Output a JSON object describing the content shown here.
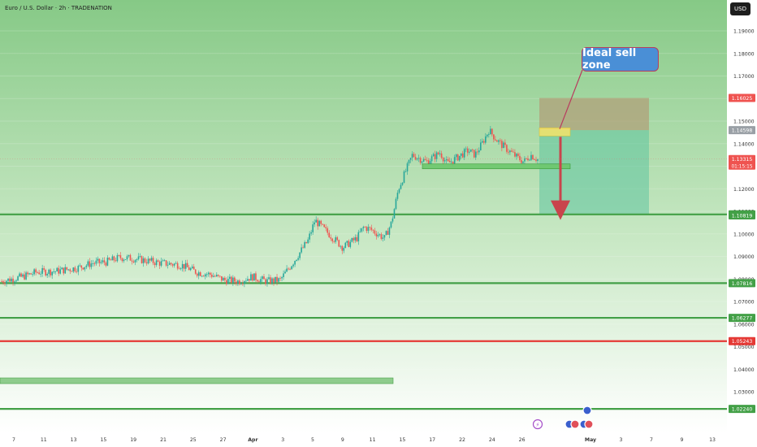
{
  "header": {
    "symbol_title": "Euro / U.S. Dollar · 2h · TRADENATION",
    "currency_button": "USD"
  },
  "annotation": {
    "callout_text": "Ideal sell zone"
  },
  "colors": {
    "background_top": "#7cc37c",
    "background_bottom": "#ffffff",
    "up_candle": "#26a69a",
    "down_candle": "#ef5350",
    "support_line": "#43a047",
    "resistance_line": "#e53935",
    "callout": "#4a8fd6",
    "stop_zone": "#b0a07a",
    "target_zone": "#5fc5a0"
  },
  "chart_data": {
    "type": "candlestick",
    "y_axis_ticks": [
      "1.19000",
      "1.18000",
      "1.17000",
      "1.16000",
      "1.15000",
      "1.14000",
      "1.13000",
      "1.12000",
      "1.11000",
      "1.10000",
      "1.09000",
      "1.08000",
      "1.07000",
      "1.06000",
      "1.05000",
      "1.04000",
      "1.03000"
    ],
    "x_axis_ticks": [
      "7",
      "11",
      "13",
      "15",
      "19",
      "21",
      "25",
      "27",
      "Apr",
      "3",
      "5",
      "9",
      "11",
      "15",
      "17",
      "22",
      "24",
      "26",
      "May",
      "3",
      "7",
      "9",
      "13"
    ],
    "horizontal_levels": [
      {
        "price": 1.10863,
        "color": "green",
        "label": "1.10863"
      },
      {
        "price": 1.07816,
        "color": "green",
        "label": "1.07816"
      },
      {
        "price": 1.06277,
        "color": "green",
        "label": "1.06277"
      },
      {
        "price": 1.05243,
        "color": "red",
        "label": "1.05243"
      },
      {
        "price": 1.0224,
        "color": "green",
        "label": "1.02240"
      }
    ],
    "price_labels": [
      {
        "price": 1.16025,
        "label": "1.16025",
        "color": "#ef5350"
      },
      {
        "price": 1.14598,
        "label": "1.14598",
        "color": "#9aa0a6"
      },
      {
        "price": 1.13315,
        "label": "1.13315",
        "sublabel": "01:15:15",
        "color": "#ef5350"
      },
      {
        "price": 1.10819,
        "label": "1.10819",
        "color": "#43a047"
      }
    ],
    "trade_setup": {
      "entry": 1.14598,
      "stop": 1.16025,
      "target": 1.10863
    },
    "path_close": [
      [
        0,
        1.079
      ],
      [
        3,
        1.081
      ],
      [
        5,
        1.083
      ],
      [
        8,
        1.0835
      ],
      [
        11,
        1.085
      ],
      [
        13,
        1.087
      ],
      [
        15,
        1.0875
      ],
      [
        17,
        1.0895
      ],
      [
        19,
        1.089
      ],
      [
        21,
        1.088
      ],
      [
        23,
        1.087
      ],
      [
        25,
        1.0865
      ],
      [
        26,
        1.086
      ],
      [
        28,
        1.083
      ],
      [
        30,
        1.082
      ],
      [
        32,
        1.0795
      ],
      [
        34,
        1.079
      ],
      [
        36,
        1.081
      ],
      [
        38,
        1.079
      ],
      [
        40,
        1.0795
      ],
      [
        42,
        1.088
      ],
      [
        44,
        1.097
      ],
      [
        45,
        1.106
      ],
      [
        47,
        1.1
      ],
      [
        49,
        1.094
      ],
      [
        51,
        1.098
      ],
      [
        52,
        1.103
      ],
      [
        53,
        1.102
      ],
      [
        55,
        1.098
      ],
      [
        56,
        1.105
      ],
      [
        57,
        1.12
      ],
      [
        59,
        1.135
      ],
      [
        61,
        1.132
      ],
      [
        63,
        1.136
      ],
      [
        64,
        1.131
      ],
      [
        65,
        1.133
      ],
      [
        67,
        1.137
      ],
      [
        68,
        1.135
      ],
      [
        69,
        1.14
      ],
      [
        70,
        1.146
      ],
      [
        71,
        1.142
      ],
      [
        72,
        1.139
      ],
      [
        74,
        1.134
      ],
      [
        75,
        1.132
      ],
      [
        76,
        1.135
      ],
      [
        77,
        1.133
      ]
    ]
  }
}
